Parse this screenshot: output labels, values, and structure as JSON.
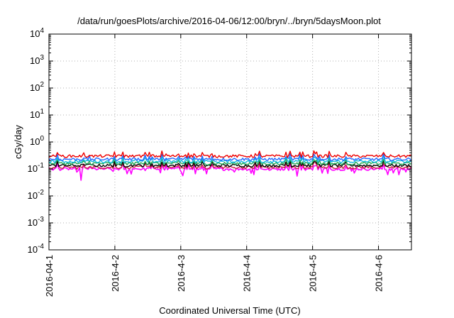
{
  "chart_data": {
    "type": "line",
    "title": "/data/run/goesPlots/archive/2016-04-06/12:00/bryn/../bryn/5daysMoon.plot",
    "xlabel": "Coordinated Universal Time (UTC)",
    "ylabel": "cGy/day",
    "y_scale": "log",
    "ylim": [
      0.0001,
      10000
    ],
    "y_ticks": [
      {
        "value": 0.0001,
        "base": "10",
        "exp": "-4"
      },
      {
        "value": 0.001,
        "base": "10",
        "exp": "-3"
      },
      {
        "value": 0.01,
        "base": "10",
        "exp": "-2"
      },
      {
        "value": 0.1,
        "base": "10",
        "exp": "-1"
      },
      {
        "value": 1,
        "base": "10",
        "exp": "0"
      },
      {
        "value": 10,
        "base": "10",
        "exp": "1"
      },
      {
        "value": 100,
        "base": "10",
        "exp": "2"
      },
      {
        "value": 1000,
        "base": "10",
        "exp": "3"
      },
      {
        "value": 10000,
        "base": "10",
        "exp": "4"
      }
    ],
    "xlim": [
      "2016-04-01",
      "2016-04-06 12:00"
    ],
    "x_ticks": [
      {
        "value": 0,
        "label": "2016-04-1"
      },
      {
        "value": 1,
        "label": "2016-4-2"
      },
      {
        "value": 2,
        "label": "2016-4-3"
      },
      {
        "value": 3,
        "label": "2016-4-4"
      },
      {
        "value": 4,
        "label": "2016-4-5"
      },
      {
        "value": 5,
        "label": "2016-4-6"
      }
    ],
    "grid": true,
    "series": [
      {
        "color": "#ff00ff",
        "baseline": 0.1,
        "x": [
          "2016-04-01 00:00",
          "2016-04-01 12:00",
          "2016-04-02 00:00",
          "2016-04-02 12:00",
          "2016-04-03 00:00",
          "2016-04-03 12:00",
          "2016-04-04 00:00",
          "2016-04-04 12:00",
          "2016-04-05 00:00",
          "2016-04-05 12:00",
          "2016-04-06 00:00",
          "2016-04-06 12:00"
        ],
        "values": [
          0.11,
          0.04,
          0.1,
          0.09,
          0.1,
          0.09,
          0.1,
          0.1,
          0.1,
          0.09,
          0.1,
          0.1
        ]
      },
      {
        "color": "#cc2244",
        "baseline": 0.115,
        "x": [
          "2016-04-01 00:00",
          "2016-04-06 12:00"
        ],
        "values": [
          0.115,
          0.115
        ]
      },
      {
        "color": "#000000",
        "baseline": 0.135,
        "x": [
          "2016-04-01 00:00",
          "2016-04-06 12:00"
        ],
        "values": [
          0.135,
          0.135
        ]
      },
      {
        "color": "#22aa55",
        "baseline": 0.16,
        "x": [
          "2016-04-01 00:00",
          "2016-04-06 12:00"
        ],
        "values": [
          0.16,
          0.16
        ]
      },
      {
        "color": "#11bbdd",
        "baseline": 0.19,
        "x": [
          "2016-04-01 00:00",
          "2016-04-06 12:00"
        ],
        "values": [
          0.19,
          0.19
        ]
      },
      {
        "color": "#2266ff",
        "baseline": 0.23,
        "x": [
          "2016-04-01 00:00",
          "2016-04-06 12:00"
        ],
        "values": [
          0.23,
          0.23
        ]
      },
      {
        "color": "#ee0000",
        "baseline": 0.3,
        "x": [
          "2016-04-01 00:00",
          "2016-04-06 12:00"
        ],
        "values": [
          0.3,
          0.3
        ]
      }
    ]
  }
}
